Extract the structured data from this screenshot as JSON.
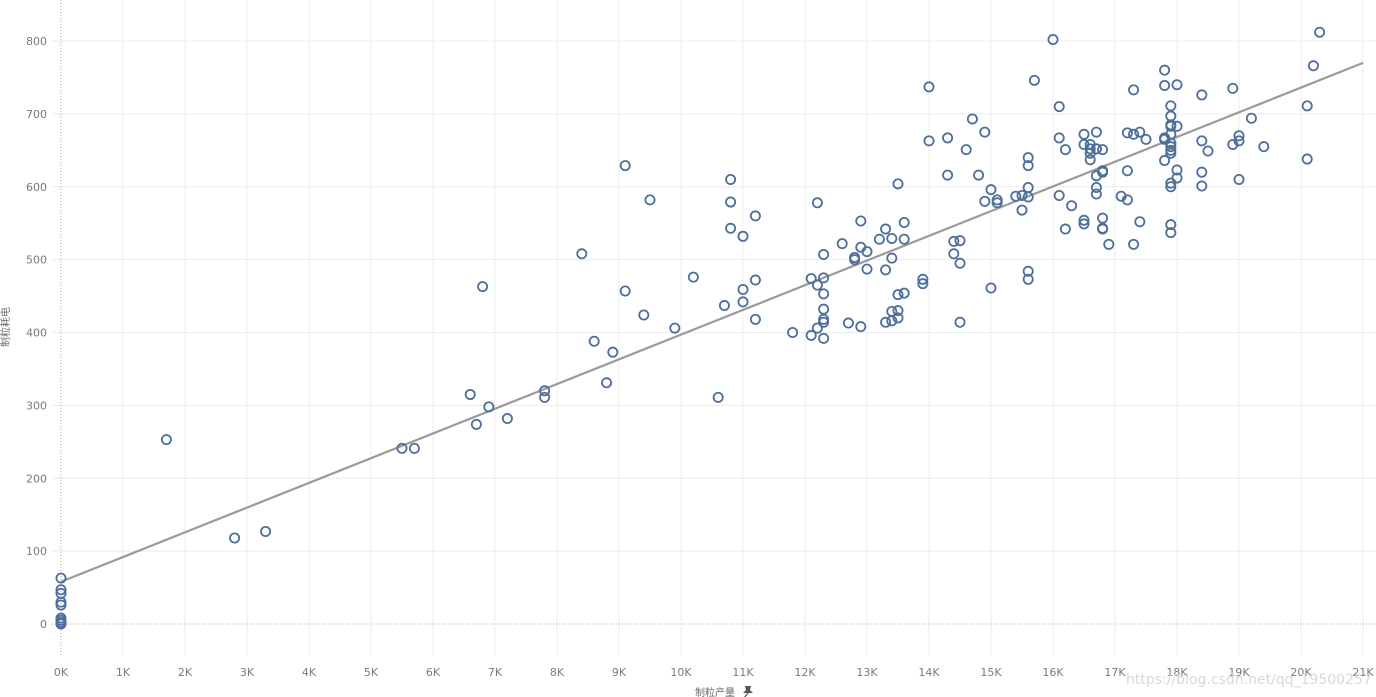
{
  "chart_data": {
    "type": "scatter",
    "title": "",
    "xlabel": "制粒产量",
    "ylabel": "制粒耗电",
    "xlim": [
      -100,
      21000
    ],
    "ylim": [
      -50,
      840
    ],
    "x_ticks": [
      0,
      1000,
      2000,
      3000,
      4000,
      5000,
      6000,
      7000,
      8000,
      9000,
      10000,
      11000,
      12000,
      13000,
      14000,
      15000,
      16000,
      17000,
      18000,
      19000,
      20000,
      21000
    ],
    "x_tick_labels": [
      "0K",
      "1K",
      "2K",
      "3K",
      "4K",
      "5K",
      "6K",
      "7K",
      "8K",
      "9K",
      "10K",
      "11K",
      "12K",
      "13K",
      "14K",
      "15K",
      "16K",
      "17K",
      "18K",
      "19K",
      "20K",
      "21K"
    ],
    "y_ticks": [
      0,
      100,
      200,
      300,
      400,
      500,
      600,
      700,
      800
    ],
    "y_tick_labels": [
      "0",
      "100",
      "200",
      "300",
      "400",
      "500",
      "600",
      "700",
      "800"
    ],
    "grid": true,
    "marker": "hollow-circle",
    "point_color": "#4e6f9b",
    "trend_color": "#9a9a9a",
    "gridline_color": "#ececec",
    "trendline": {
      "x": [
        0,
        21000
      ],
      "y": [
        58,
        770
      ]
    },
    "points": [
      [
        0,
        63
      ],
      [
        0,
        47
      ],
      [
        0,
        42
      ],
      [
        0,
        30
      ],
      [
        0,
        26
      ],
      [
        0,
        8
      ],
      [
        0,
        5
      ],
      [
        0,
        2
      ],
      [
        0,
        0
      ],
      [
        1700,
        253
      ],
      [
        2800,
        118
      ],
      [
        3300,
        127
      ],
      [
        5500,
        241
      ],
      [
        5700,
        241
      ],
      [
        6600,
        315
      ],
      [
        6700,
        274
      ],
      [
        6800,
        463
      ],
      [
        6900,
        298
      ],
      [
        7200,
        282
      ],
      [
        7800,
        320
      ],
      [
        7800,
        311
      ],
      [
        8400,
        508
      ],
      [
        8600,
        388
      ],
      [
        8800,
        331
      ],
      [
        8900,
        373
      ],
      [
        9100,
        457
      ],
      [
        9100,
        629
      ],
      [
        9400,
        424
      ],
      [
        9500,
        582
      ],
      [
        9900,
        406
      ],
      [
        10200,
        476
      ],
      [
        10600,
        311
      ],
      [
        10700,
        437
      ],
      [
        10800,
        610
      ],
      [
        10800,
        579
      ],
      [
        10800,
        543
      ],
      [
        11000,
        532
      ],
      [
        11000,
        459
      ],
      [
        11000,
        442
      ],
      [
        11200,
        560
      ],
      [
        11200,
        472
      ],
      [
        11200,
        418
      ],
      [
        11800,
        400
      ],
      [
        12100,
        396
      ],
      [
        12100,
        474
      ],
      [
        12200,
        465
      ],
      [
        12200,
        578
      ],
      [
        12200,
        406
      ],
      [
        12300,
        475
      ],
      [
        12300,
        453
      ],
      [
        12300,
        432
      ],
      [
        12300,
        414
      ],
      [
        12300,
        392
      ],
      [
        12300,
        418
      ],
      [
        12300,
        507
      ],
      [
        12600,
        522
      ],
      [
        12700,
        413
      ],
      [
        12800,
        503
      ],
      [
        12800,
        500
      ],
      [
        12900,
        517
      ],
      [
        12900,
        553
      ],
      [
        12900,
        408
      ],
      [
        13000,
        487
      ],
      [
        13000,
        511
      ],
      [
        13200,
        528
      ],
      [
        13300,
        542
      ],
      [
        13300,
        486
      ],
      [
        13300,
        414
      ],
      [
        13400,
        529
      ],
      [
        13400,
        429
      ],
      [
        13400,
        416
      ],
      [
        13400,
        502
      ],
      [
        13500,
        452
      ],
      [
        13500,
        430
      ],
      [
        13500,
        420
      ],
      [
        13500,
        604
      ],
      [
        13600,
        551
      ],
      [
        13600,
        528
      ],
      [
        13600,
        454
      ],
      [
        13900,
        473
      ],
      [
        13900,
        467
      ],
      [
        14000,
        663
      ],
      [
        14000,
        737
      ],
      [
        14300,
        667
      ],
      [
        14300,
        616
      ],
      [
        14400,
        525
      ],
      [
        14400,
        508
      ],
      [
        14500,
        526
      ],
      [
        14500,
        414
      ],
      [
        14500,
        495
      ],
      [
        14600,
        651
      ],
      [
        14700,
        693
      ],
      [
        14800,
        616
      ],
      [
        14900,
        675
      ],
      [
        14900,
        580
      ],
      [
        15000,
        461
      ],
      [
        15000,
        596
      ],
      [
        15100,
        578
      ],
      [
        15100,
        582
      ],
      [
        15400,
        587
      ],
      [
        15500,
        568
      ],
      [
        15500,
        588
      ],
      [
        15600,
        640
      ],
      [
        15600,
        629
      ],
      [
        15600,
        599
      ],
      [
        15600,
        586
      ],
      [
        15600,
        484
      ],
      [
        15600,
        473
      ],
      [
        15700,
        746
      ],
      [
        16000,
        802
      ],
      [
        16100,
        667
      ],
      [
        16100,
        588
      ],
      [
        16100,
        710
      ],
      [
        16200,
        542
      ],
      [
        16200,
        651
      ],
      [
        16300,
        574
      ],
      [
        16500,
        672
      ],
      [
        16500,
        658
      ],
      [
        16500,
        549
      ],
      [
        16500,
        554
      ],
      [
        16600,
        637
      ],
      [
        16600,
        646
      ],
      [
        16600,
        652
      ],
      [
        16600,
        658
      ],
      [
        16700,
        675
      ],
      [
        16700,
        652
      ],
      [
        16700,
        615
      ],
      [
        16700,
        599
      ],
      [
        16700,
        590
      ],
      [
        16700,
        652
      ],
      [
        16800,
        651
      ],
      [
        16800,
        622
      ],
      [
        16800,
        620
      ],
      [
        16800,
        557
      ],
      [
        16800,
        543
      ],
      [
        16800,
        542
      ],
      [
        16900,
        521
      ],
      [
        17100,
        587
      ],
      [
        17200,
        674
      ],
      [
        17200,
        622
      ],
      [
        17200,
        582
      ],
      [
        17300,
        733
      ],
      [
        17300,
        521
      ],
      [
        17300,
        672
      ],
      [
        17400,
        675
      ],
      [
        17400,
        552
      ],
      [
        17500,
        665
      ],
      [
        17800,
        760
      ],
      [
        17800,
        739
      ],
      [
        17800,
        667
      ],
      [
        17800,
        665
      ],
      [
        17800,
        636
      ],
      [
        17900,
        685
      ],
      [
        17900,
        711
      ],
      [
        17900,
        697
      ],
      [
        17900,
        683
      ],
      [
        17900,
        672
      ],
      [
        17900,
        660
      ],
      [
        17900,
        655
      ],
      [
        17900,
        650
      ],
      [
        17900,
        646
      ],
      [
        17900,
        605
      ],
      [
        17900,
        600
      ],
      [
        17900,
        548
      ],
      [
        17900,
        537
      ],
      [
        18000,
        740
      ],
      [
        18000,
        683
      ],
      [
        18000,
        623
      ],
      [
        18000,
        612
      ],
      [
        18400,
        726
      ],
      [
        18400,
        601
      ],
      [
        18400,
        663
      ],
      [
        18400,
        620
      ],
      [
        18500,
        649
      ],
      [
        18900,
        735
      ],
      [
        18900,
        658
      ],
      [
        19000,
        663
      ],
      [
        19000,
        670
      ],
      [
        19000,
        610
      ],
      [
        19200,
        694
      ],
      [
        19400,
        655
      ],
      [
        20100,
        711
      ],
      [
        20100,
        638
      ],
      [
        20200,
        766
      ],
      [
        20300,
        812
      ]
    ]
  },
  "watermark": "https://blog.csdn.net/qq_19500257",
  "pin_icon": "pin-icon"
}
